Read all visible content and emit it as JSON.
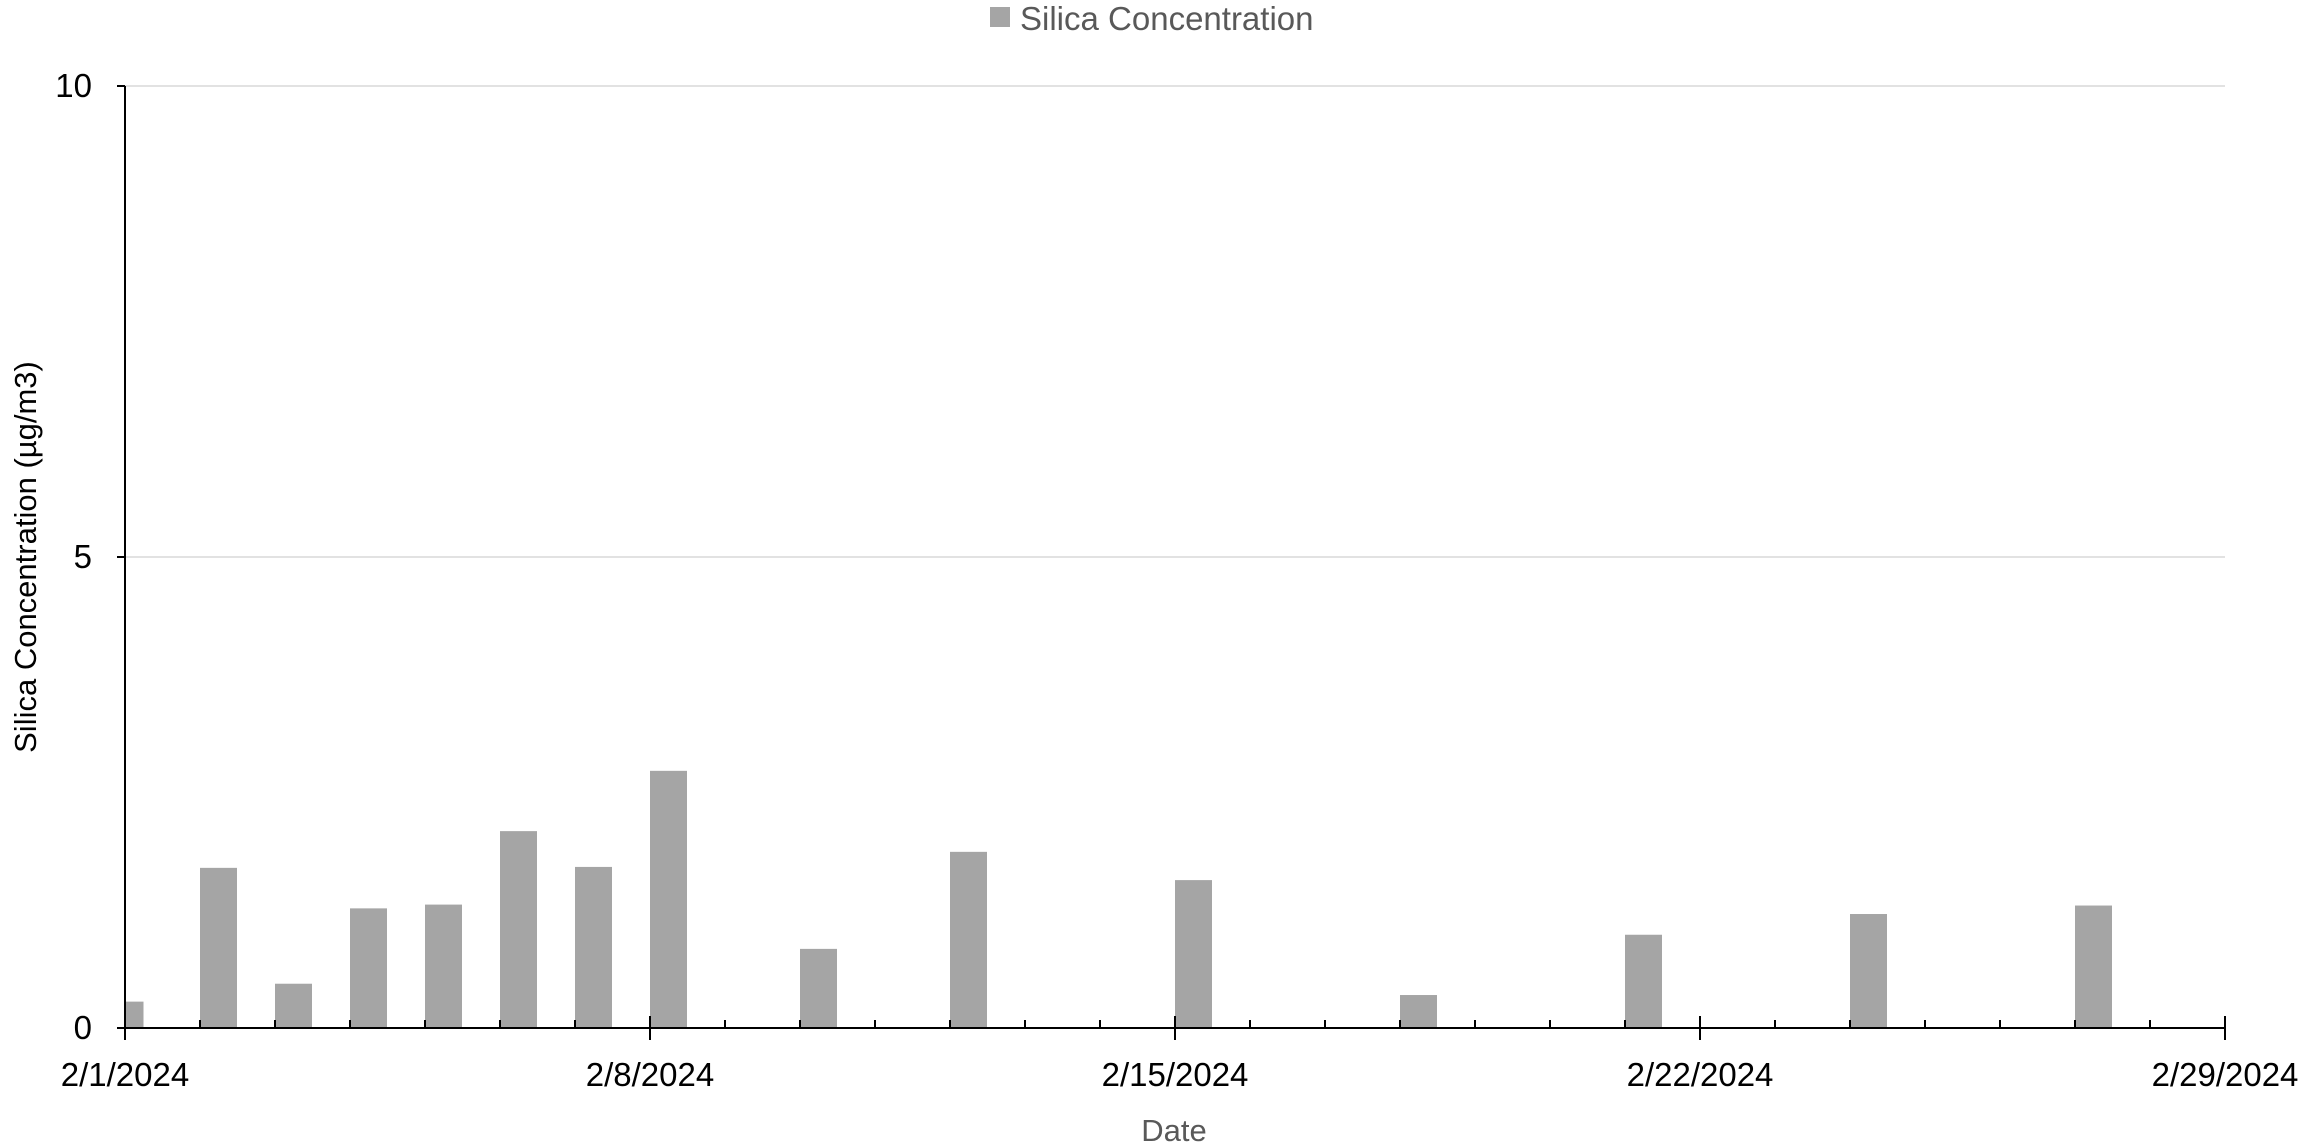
{
  "chart_data": {
    "type": "bar",
    "title": "",
    "xlabel": "Date",
    "ylabel": "Silica Concentration (µg/m3)",
    "ylim": [
      0,
      10
    ],
    "yticks": [
      0,
      5,
      10
    ],
    "xlim": [
      "2/1/2024",
      "2/29/2024"
    ],
    "xticks": [
      "2/1/2024",
      "2/8/2024",
      "2/15/2024",
      "2/22/2024",
      "2/29/2024"
    ],
    "grid": true,
    "legend_position": "top",
    "colors": {
      "bar": "#A5A5A5",
      "grid": "#D9D9D9",
      "axis": "#000000"
    },
    "series": [
      {
        "name": "Silica Concentration",
        "x": [
          "2/1/2024",
          "2/2/2024",
          "2/3/2024",
          "2/4/2024",
          "2/5/2024",
          "2/6/2024",
          "2/7/2024",
          "2/8/2024",
          "2/10/2024",
          "2/12/2024",
          "2/15/2024",
          "2/18/2024",
          "2/21/2024",
          "2/24/2024",
          "2/27/2024"
        ],
        "values": [
          0.28,
          1.7,
          0.47,
          1.27,
          1.31,
          2.09,
          1.71,
          2.73,
          0.84,
          1.87,
          1.57,
          0.35,
          0.99,
          1.21,
          1.3
        ]
      }
    ]
  }
}
